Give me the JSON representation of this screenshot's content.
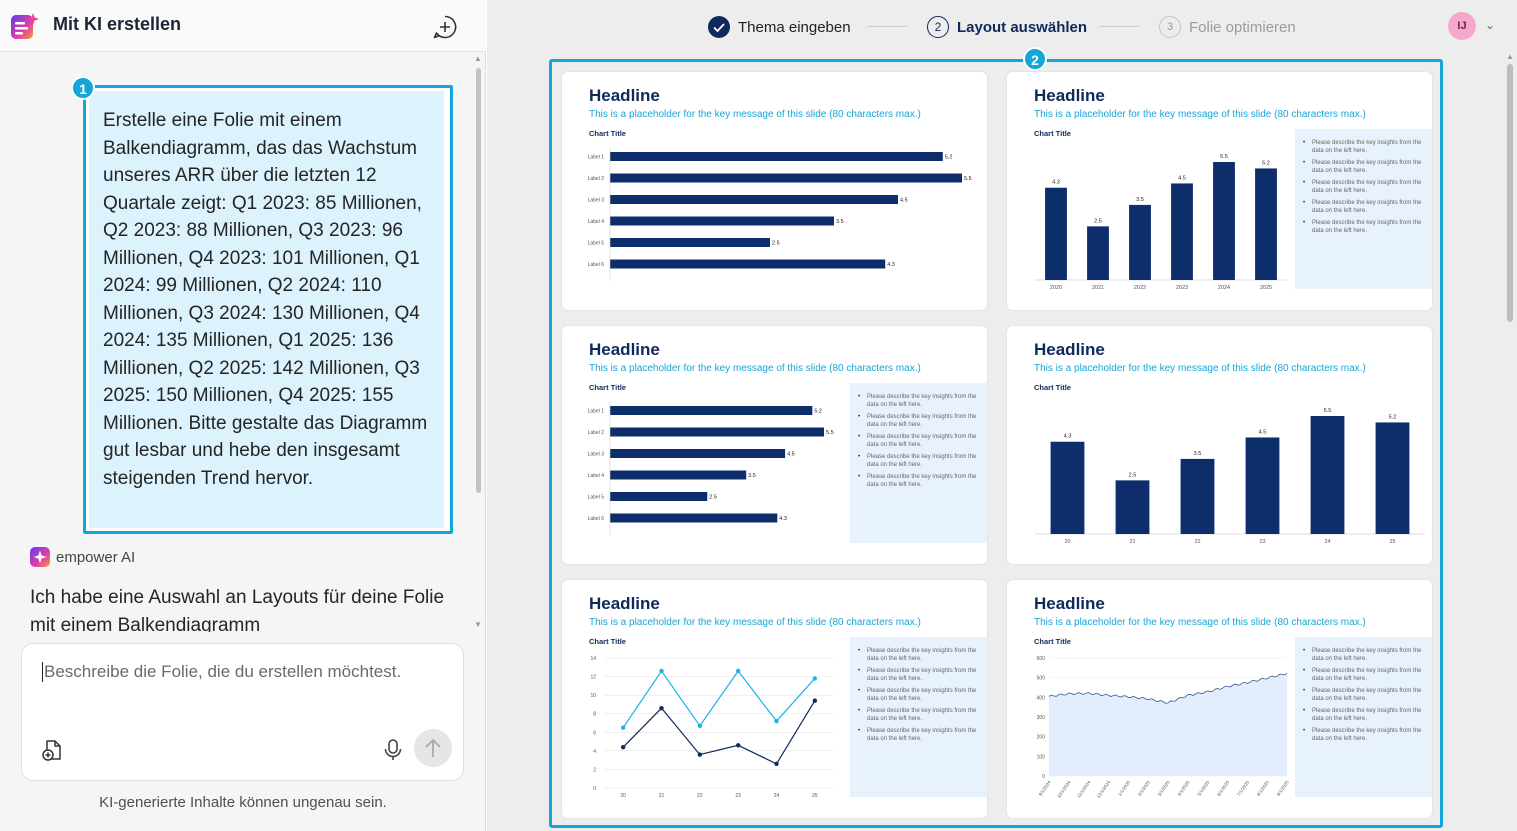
{
  "app": {
    "title": "Mit KI erstellen"
  },
  "chat": {
    "user_prompt": "Erstelle eine Folie mit einem Balkendiagramm, das das Wachstum unseres ARR über die letzten 12 Quartale zeigt: Q1 2023: 85 Millionen, Q2 2023: 88 Millionen, Q3 2023: 96 Millionen, Q4 2023: 101 Millionen, Q1 2024: 99 Millionen, Q2 2024: 110 Millionen, Q3 2024: 130 Millionen, Q4 2024: 135 Millionen, Q1 2025: 136 Millionen, Q2 2025: 142 Millionen, Q3 2025: 150 Millionen, Q4 2025: 155 Millionen. Bitte gestalte das Diagramm gut lesbar und hebe den insgesamt steigenden Trend hervor.",
    "ai_name": "empower AI",
    "ai_response": "Ich habe eine Auswahl an Layouts für deine Folie mit einem Balkendiagramm",
    "input_placeholder": "Beschreibe die Folie, die du erstellen möchtest.",
    "disclaimer": "KI-generierte Inhalte können ungenau sein."
  },
  "markers": [
    "1",
    "2"
  ],
  "steps": [
    {
      "num": "1",
      "label": "Thema eingeben",
      "state": "done"
    },
    {
      "num": "2",
      "label": "Layout auswählen",
      "state": "active"
    },
    {
      "num": "3",
      "label": "Folie optimieren",
      "state": "pending"
    }
  ],
  "user": {
    "initials": "IJ"
  },
  "slide_text": {
    "headline": "Headline",
    "subtitle": "This is a placeholder for the key message of this slide (80 characters max.)",
    "chart_title": "Chart Title",
    "insight": "Please describe the key insights from the data on the left here."
  },
  "colors": {
    "accent": "#13a6d9",
    "navy": "#0f2a5a",
    "bar": "#0d2d6b",
    "light_line": "#1ab2ee",
    "insight_bg": "#e8f2fd"
  },
  "chart_data": [
    {
      "type": "bar",
      "orientation": "horizontal",
      "categories": [
        "Label 1",
        "Label 2",
        "Label 3",
        "Label 4",
        "Label 5",
        "Label 6"
      ],
      "values": [
        5.2,
        5.5,
        4.5,
        3.5,
        2.5,
        4.3
      ],
      "title": "Chart Title"
    },
    {
      "type": "bar",
      "orientation": "vertical",
      "categories": [
        "2020",
        "2021",
        "2022",
        "2023",
        "2024",
        "2025"
      ],
      "values": [
        4.3,
        2.5,
        3.5,
        4.5,
        5.5,
        5.2
      ],
      "title": "Chart Title"
    },
    {
      "type": "bar",
      "orientation": "horizontal",
      "categories": [
        "Label 1",
        "Label 2",
        "Label 3",
        "Label 4",
        "Label 5",
        "Label 6"
      ],
      "values": [
        5.2,
        5.5,
        4.5,
        3.5,
        2.5,
        4.3
      ],
      "title": "Chart Title"
    },
    {
      "type": "bar",
      "orientation": "vertical",
      "categories": [
        "20",
        "21",
        "22",
        "23",
        "24",
        "25"
      ],
      "values": [
        4.3,
        2.5,
        3.5,
        4.5,
        5.5,
        5.2
      ],
      "title": "Chart Title"
    },
    {
      "type": "line",
      "x": [
        "20",
        "21",
        "22",
        "23",
        "24",
        "25"
      ],
      "series": [
        {
          "values": [
            6.5,
            12.6,
            6.7,
            12.6,
            7.2,
            11.8
          ]
        },
        {
          "values": [
            4.4,
            8.6,
            3.6,
            4.6,
            2.6,
            9.4
          ]
        }
      ],
      "ylim": [
        0,
        14
      ],
      "yticks": [
        "0",
        "2",
        "4",
        "6",
        "8",
        "10",
        "12",
        "14"
      ],
      "title": "Chart Title"
    },
    {
      "type": "area",
      "x": [
        "9/1/2024",
        "10/1/2024",
        "11/1/2024",
        "12/1/2024",
        "1/1/2025",
        "2/1/2025",
        "3/1/2025",
        "4/1/2025",
        "5/1/2025",
        "6/1/2025",
        "7/1/2025",
        "8/1/2025",
        "9/1/2025"
      ],
      "values": [
        405,
        418,
        420,
        410,
        403,
        392,
        372,
        410,
        428,
        455,
        475,
        498,
        522
      ],
      "ylim": [
        0,
        600
      ],
      "yticks": [
        "0",
        "100",
        "200",
        "300",
        "400",
        "500",
        "600"
      ],
      "title": "Chart Title"
    }
  ]
}
